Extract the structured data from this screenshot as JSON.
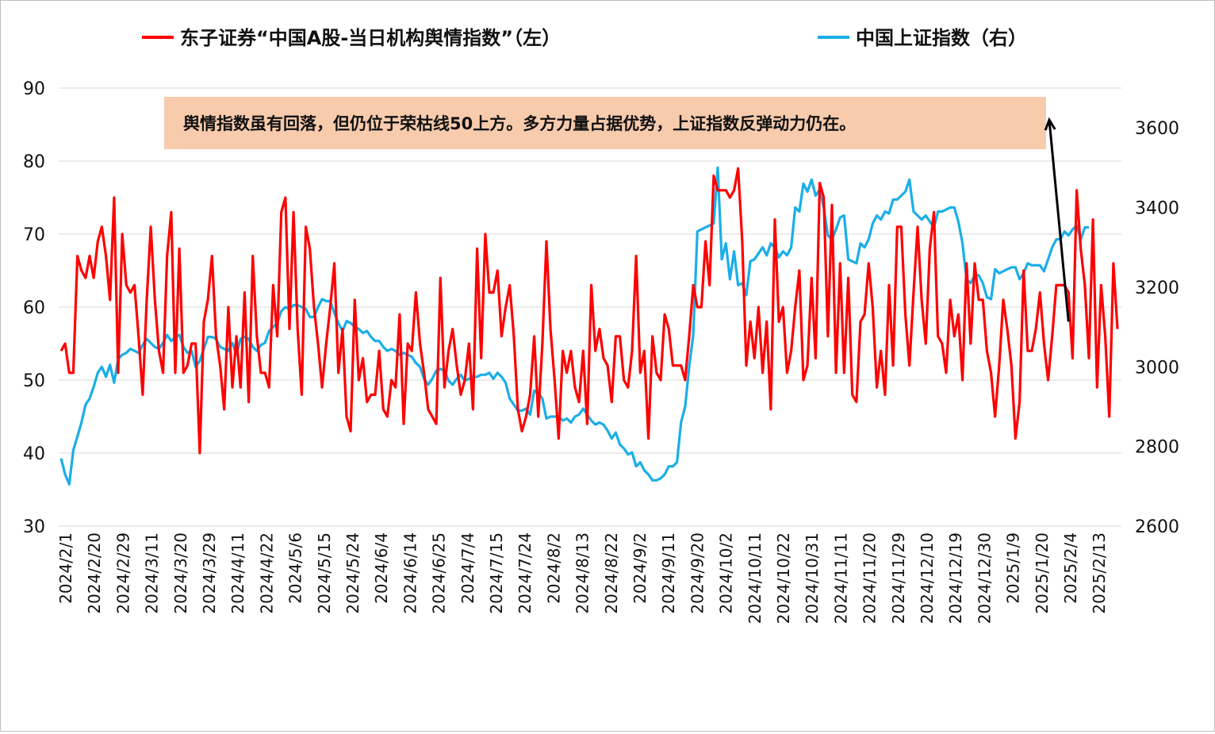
{
  "chart_data": {
    "type": "line",
    "legend": {
      "placement": "top",
      "entries": [
        {
          "label": "东子证券“中国A股-当日机构舆情指数”（左）",
          "color": "#ff0000"
        },
        {
          "label": "中国上证指数（右）",
          "color": "#1aaee8"
        }
      ]
    },
    "annotation": {
      "text": "舆情指数虽有回落，但仍位于荣枯线50上方。多方力量占据优势，上证指数反弹动力仍在。",
      "box_color": "#f8cbad"
    },
    "grid": true,
    "left_axis": {
      "ylim": [
        30,
        90
      ],
      "ticks": [
        "30",
        "40",
        "50",
        "60",
        "70",
        "80",
        "90"
      ]
    },
    "right_axis": {
      "ylim": [
        2600,
        3700
      ],
      "ticks": [
        "2600",
        "2800",
        "3000",
        "3200",
        "3400",
        "3600"
      ]
    },
    "x_tick_labels": [
      "2024/2/1",
      "2024/2/20",
      "2024/2/29",
      "2024/3/11",
      "2024/3/20",
      "2024/3/29",
      "2024/4/11",
      "2024/4/22",
      "2024/5/6",
      "2024/5/15",
      "2024/5/24",
      "2024/6/4",
      "2024/6/14",
      "2024/6/25",
      "2024/7/4",
      "2024/7/15",
      "2024/7/24",
      "2024/8/2",
      "2024/8/13",
      "2024/8/22",
      "2024/9/2",
      "2024/9/11",
      "2024/9/20",
      "2024/10/2",
      "2024/10/11",
      "2024/10/22",
      "2024/10/31",
      "2024/11/11",
      "2024/11/20",
      "2024/11/29",
      "2024/12/10",
      "2024/12/19",
      "2024/12/30",
      "2025/1/9",
      "2025/1/20",
      "2025/2/4",
      "2025/2/13"
    ],
    "series": [
      {
        "name": "东子证券“中国A股-当日机构舆情指数”（左）",
        "axis": "left",
        "color": "#ff0000",
        "values": [
          54,
          55,
          51,
          51,
          67,
          65,
          64,
          67,
          64,
          69,
          71,
          67,
          61,
          75,
          51,
          70,
          63,
          62,
          63,
          56,
          48,
          61,
          71,
          61,
          54,
          51,
          67,
          73,
          51,
          68,
          51,
          52,
          55,
          55,
          40,
          58,
          61,
          67,
          56,
          52,
          46,
          60,
          49,
          56,
          49,
          62,
          47,
          67,
          56,
          51,
          51,
          49,
          63,
          56,
          73,
          75,
          57,
          73,
          57,
          48,
          71,
          68,
          60,
          55,
          49,
          55,
          60,
          66,
          51,
          57,
          45,
          43,
          61,
          50,
          53,
          47,
          48,
          48,
          54,
          46,
          45,
          50,
          49,
          59,
          44,
          55,
          54,
          62,
          55,
          51,
          46,
          45,
          44,
          64,
          49,
          54,
          57,
          52,
          48,
          50,
          55,
          46,
          68,
          53,
          70,
          62,
          62,
          65,
          56,
          60,
          63,
          56,
          46,
          43,
          45,
          48,
          56,
          45,
          55,
          69,
          57,
          50,
          42,
          54,
          51,
          54,
          49,
          47,
          54,
          44,
          63,
          54,
          57,
          53,
          52,
          47,
          56,
          56,
          50,
          49,
          54,
          67,
          51,
          54,
          42,
          56,
          51,
          50,
          59,
          57,
          52,
          52,
          52,
          50,
          56,
          63,
          60,
          60,
          69,
          63,
          78,
          76,
          76,
          76,
          75,
          76,
          79,
          69,
          52,
          58,
          53,
          60,
          51,
          58,
          46,
          72,
          58,
          60,
          51,
          54,
          60,
          65,
          50,
          52,
          64,
          53,
          77,
          75,
          56,
          74,
          51,
          66,
          51,
          64,
          48,
          47,
          58,
          59,
          66,
          60,
          49,
          54,
          48,
          63,
          52,
          71,
          71,
          59,
          52,
          62,
          71,
          61,
          55,
          68,
          73,
          56,
          55,
          51,
          61,
          56,
          59,
          50,
          66,
          55,
          66,
          61,
          61,
          54,
          51,
          45,
          52,
          61,
          57,
          52,
          42,
          47,
          65,
          54,
          54,
          57,
          62,
          55,
          50,
          56,
          63,
          63,
          63,
          62,
          53,
          76,
          68,
          63,
          53,
          72,
          49,
          63,
          56,
          45,
          66,
          57
        ]
      },
      {
        "name": "中国上证指数（右）",
        "axis": "right",
        "color": "#1aaee8",
        "values": [
          2770,
          2730,
          2705,
          2790,
          2825,
          2860,
          2905,
          2920,
          2950,
          2985,
          3000,
          2975,
          3005,
          2960,
          3020,
          3030,
          3035,
          3045,
          3040,
          3035,
          3055,
          3070,
          3060,
          3050,
          3045,
          3060,
          3080,
          3065,
          3075,
          3080,
          3050,
          3035,
          3040,
          3000,
          3015,
          3045,
          3075,
          3075,
          3070,
          3050,
          3045,
          3040,
          3060,
          3030,
          3070,
          3075,
          3070,
          3050,
          3040,
          3055,
          3060,
          3090,
          3100,
          3110,
          3140,
          3150,
          3145,
          3155,
          3155,
          3150,
          3145,
          3125,
          3125,
          3150,
          3170,
          3165,
          3165,
          3135,
          3110,
          3090,
          3115,
          3110,
          3100,
          3095,
          3085,
          3090,
          3075,
          3065,
          3065,
          3050,
          3040,
          3045,
          3040,
          3030,
          3035,
          3030,
          3025,
          3010,
          3000,
          2970,
          2955,
          2970,
          2990,
          2995,
          2990,
          2965,
          2955,
          2970,
          2980,
          2965,
          2970,
          2975,
          2975,
          2980,
          2980,
          2985,
          2970,
          2985,
          2975,
          2960,
          2920,
          2905,
          2890,
          2890,
          2895,
          2880,
          2940,
          2935,
          2920,
          2870,
          2875,
          2875,
          2875,
          2865,
          2870,
          2860,
          2875,
          2880,
          2895,
          2880,
          2865,
          2855,
          2860,
          2855,
          2840,
          2820,
          2835,
          2805,
          2795,
          2780,
          2785,
          2750,
          2760,
          2740,
          2730,
          2715,
          2715,
          2720,
          2730,
          2750,
          2750,
          2760,
          2860,
          2900,
          3000,
          3080,
          3340,
          3345,
          3350,
          3355,
          3360,
          3500,
          3270,
          3310,
          3220,
          3290,
          3205,
          3210,
          3180,
          3265,
          3270,
          3285,
          3300,
          3280,
          3310,
          3300,
          3275,
          3290,
          3280,
          3300,
          3400,
          3390,
          3460,
          3440,
          3470,
          3430,
          3445,
          3400,
          3330,
          3320,
          3345,
          3375,
          3380,
          3270,
          3265,
          3260,
          3310,
          3300,
          3320,
          3360,
          3380,
          3370,
          3390,
          3385,
          3420,
          3420,
          3430,
          3440,
          3470,
          3390,
          3380,
          3370,
          3380,
          3365,
          3350,
          3390,
          3390,
          3395,
          3400,
          3400,
          3365,
          3310,
          3220,
          3210,
          3230,
          3230,
          3210,
          3175,
          3170,
          3245,
          3235,
          3240,
          3245,
          3250,
          3250,
          3220,
          3235,
          3260,
          3255,
          3255,
          3255,
          3240,
          3270,
          3300,
          3320,
          3320,
          3340,
          3330,
          3345,
          3355,
          3320,
          3350,
          3350
        ]
      }
    ],
    "arrow": {
      "from": [
        247,
        58
      ],
      "to": [
        230,
        75
      ],
      "axis": "left"
    }
  }
}
